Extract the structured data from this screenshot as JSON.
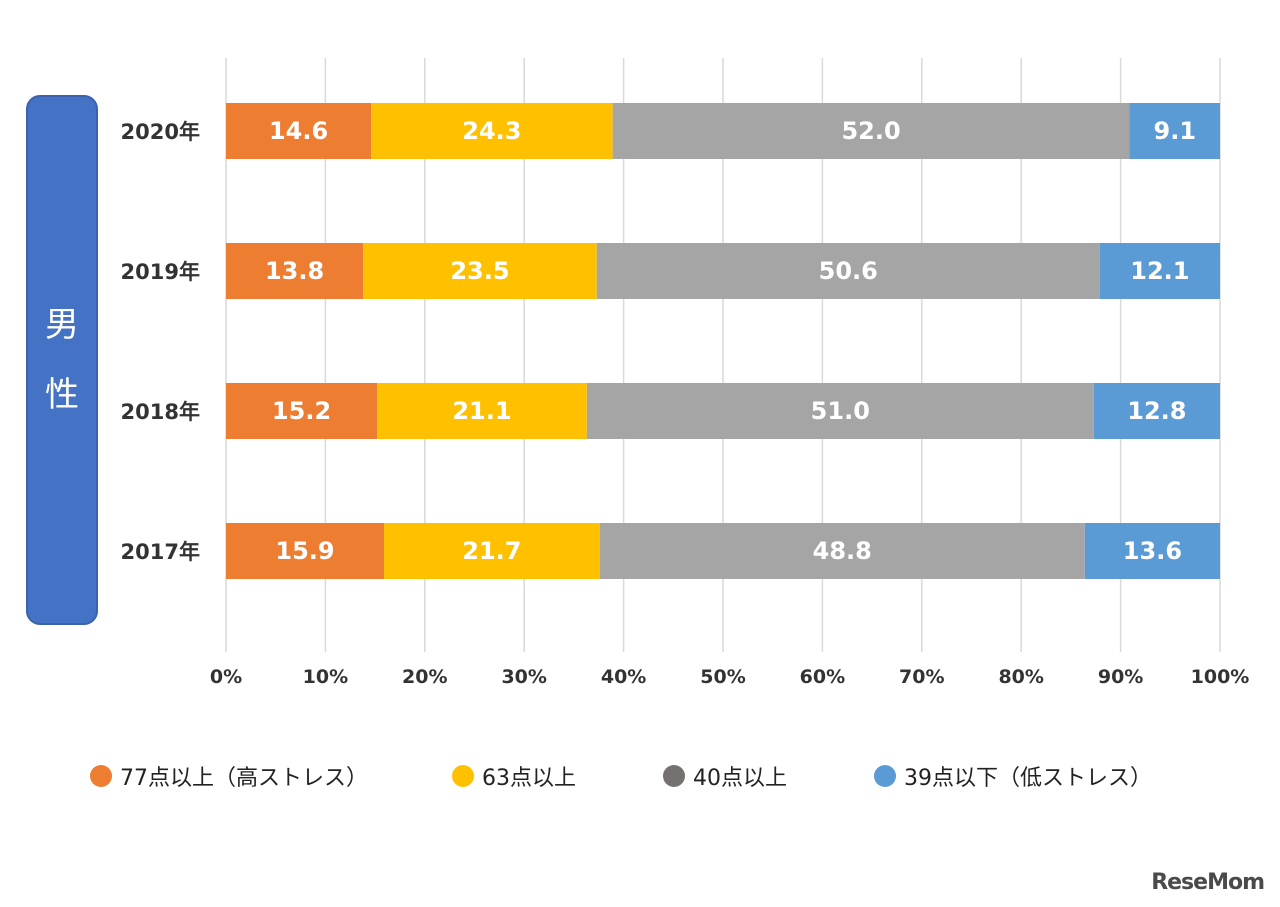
{
  "side_label": {
    "char1": "男",
    "char2": "性"
  },
  "chart_data": {
    "type": "bar",
    "orientation": "horizontal",
    "stacked": true,
    "categories": [
      "2020年",
      "2019年",
      "2018年",
      "2017年"
    ],
    "series": [
      {
        "name": "77点以上（高ストレス）",
        "color": "#ed7d31",
        "values": [
          14.6,
          13.8,
          15.2,
          15.9
        ]
      },
      {
        "name": "63点以上",
        "color": "#ffc000",
        "values": [
          24.3,
          23.5,
          21.1,
          21.7
        ]
      },
      {
        "name": "40点以上",
        "color": "#a5a5a5",
        "values": [
          52.0,
          50.6,
          51.0,
          48.8
        ]
      },
      {
        "name": "39点以下（低ストレス）",
        "color": "#5b9bd5",
        "values": [
          9.1,
          12.1,
          12.8,
          13.6
        ]
      }
    ],
    "data_labels": [
      [
        "14.6",
        "24.3",
        "52.0",
        "9.1"
      ],
      [
        "13.8",
        "23.5",
        "50.6",
        "12.1"
      ],
      [
        "15.2",
        "21.1",
        "51.0",
        "12.8"
      ],
      [
        "15.9",
        "21.7",
        "48.8",
        "13.6"
      ]
    ],
    "x_ticks": [
      "0%",
      "10%",
      "20%",
      "30%",
      "40%",
      "50%",
      "60%",
      "70%",
      "80%",
      "90%",
      "100%"
    ],
    "xlim": [
      0,
      100
    ],
    "grid": true,
    "legend_position": "bottom"
  },
  "legend": {
    "items": [
      {
        "label": "77点以上（高ストレス）",
        "color": "#ed7d31"
      },
      {
        "label": "63点以上",
        "color": "#ffc000"
      },
      {
        "label": "40点以上",
        "color": "#767171"
      },
      {
        "label": "39点以下（低ストレス）",
        "color": "#5b9bd5"
      }
    ]
  },
  "watermark": {
    "text": "ReseMom"
  }
}
